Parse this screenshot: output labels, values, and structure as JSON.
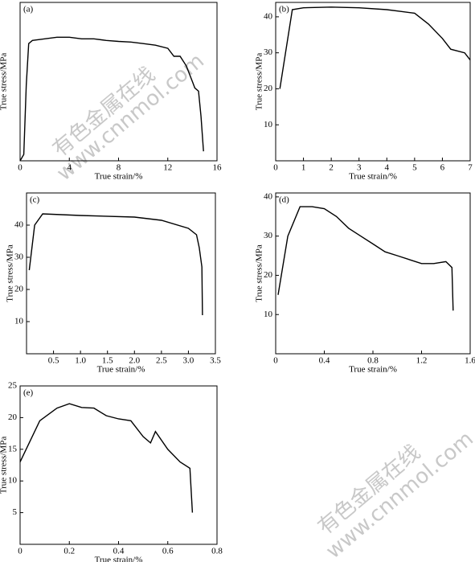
{
  "watermark": [
    "有色金属在线",
    "www.cnnmol.com"
  ],
  "chart_data": [
    {
      "type": "line",
      "panel": "(a)",
      "xlabel": "True strain/%",
      "ylabel": "True stress/MPa",
      "xlim": [
        0,
        16
      ],
      "xticks": [
        0,
        4,
        8,
        12,
        16
      ],
      "ylim": [
        0,
        50
      ],
      "x": [
        0,
        0.3,
        0.5,
        0.7,
        1,
        2,
        3,
        4,
        5,
        6,
        7,
        8,
        9,
        10,
        11,
        12,
        12.5,
        13,
        13.5,
        14,
        14.2,
        14.5,
        14.7,
        14.9
      ],
      "series": [
        {
          "color": "#000000",
          "values": [
            0,
            2,
            24,
            37,
            38,
            38.5,
            39,
            39,
            38.5,
            38.5,
            38,
            37.7,
            37.5,
            37,
            36.5,
            35.5,
            33,
            33,
            30,
            25,
            23,
            22,
            14,
            3
          ]
        }
      ]
    },
    {
      "type": "line",
      "panel": "(b)",
      "xlabel": "True strain/%",
      "ylabel": "True stress/MPa",
      "xlim": [
        0,
        7
      ],
      "xticks": [
        0,
        1,
        2,
        3,
        4,
        5,
        6,
        7
      ],
      "ylim": [
        0,
        44
      ],
      "yticks": [
        10,
        20,
        30,
        40
      ],
      "x": [
        0.15,
        0.6,
        1,
        2,
        3,
        4,
        4.5,
        5,
        5.5,
        6,
        6.3,
        6.8,
        7
      ],
      "series": [
        {
          "color": "#000000",
          "values": [
            20,
            42,
            42.5,
            42.7,
            42.5,
            42,
            41.5,
            41,
            38,
            34,
            31,
            30,
            28
          ]
        }
      ]
    },
    {
      "type": "line",
      "panel": "(c)",
      "xlabel": "True strain/%",
      "ylabel": "True stress/MPa",
      "xlim": [
        0,
        3.5
      ],
      "xticks": [
        {
          "value": 0.5,
          "label": "0.5"
        },
        {
          "value": 1,
          "label": "1.0"
        },
        {
          "value": 1.5,
          "label": "1.5"
        },
        {
          "value": 2,
          "label": "2.0"
        },
        {
          "value": 2.5,
          "label": "2.5"
        },
        {
          "value": 3,
          "label": "3.0"
        },
        {
          "value": 3.5,
          "label": "3.5"
        }
      ],
      "ylim": [
        0,
        50
      ],
      "yticks": [
        10,
        20,
        30,
        40
      ],
      "x": [
        0.05,
        0.15,
        0.3,
        1,
        2,
        2.5,
        3,
        3.15,
        3.2,
        3.25,
        3.26
      ],
      "series": [
        {
          "color": "#000000",
          "values": [
            26,
            40,
            43.5,
            43,
            42.5,
            41.5,
            39,
            37,
            33,
            27,
            12
          ]
        }
      ]
    },
    {
      "type": "line",
      "panel": "(d)",
      "xlabel": "True strain/%",
      "ylabel": "True stress/MPa",
      "xlim": [
        0,
        1.6
      ],
      "xticks": [
        0,
        0.4,
        0.8,
        1.2,
        1.6
      ],
      "ylim": [
        0,
        41
      ],
      "yticks": [
        10,
        20,
        30,
        40
      ],
      "x": [
        0.02,
        0.1,
        0.2,
        0.3,
        0.4,
        0.5,
        0.6,
        0.7,
        0.8,
        0.9,
        1,
        1.1,
        1.2,
        1.3,
        1.4,
        1.45,
        1.46
      ],
      "series": [
        {
          "color": "#000000",
          "values": [
            15,
            30,
            37.5,
            37.5,
            37,
            35,
            32,
            30,
            28,
            26,
            25,
            24,
            23,
            23,
            23.5,
            22,
            11
          ]
        }
      ]
    },
    {
      "type": "line",
      "panel": "(e)",
      "xlabel": "True strain/%",
      "ylabel": "True stress/MPa",
      "xlim": [
        0,
        0.8
      ],
      "xticks": [
        0,
        0.2,
        0.4,
        0.6,
        0.8
      ],
      "ylim": [
        0,
        25
      ],
      "yticks": [
        5,
        10,
        15,
        20,
        25
      ],
      "x": [
        0,
        0.08,
        0.15,
        0.2,
        0.25,
        0.3,
        0.35,
        0.4,
        0.45,
        0.5,
        0.53,
        0.55,
        0.6,
        0.65,
        0.69,
        0.7
      ],
      "series": [
        {
          "color": "#000000",
          "values": [
            13,
            19.5,
            21.5,
            22.2,
            21.6,
            21.5,
            20.3,
            19.8,
            19.5,
            17,
            16,
            17.8,
            15,
            13,
            12,
            5
          ]
        }
      ]
    }
  ]
}
